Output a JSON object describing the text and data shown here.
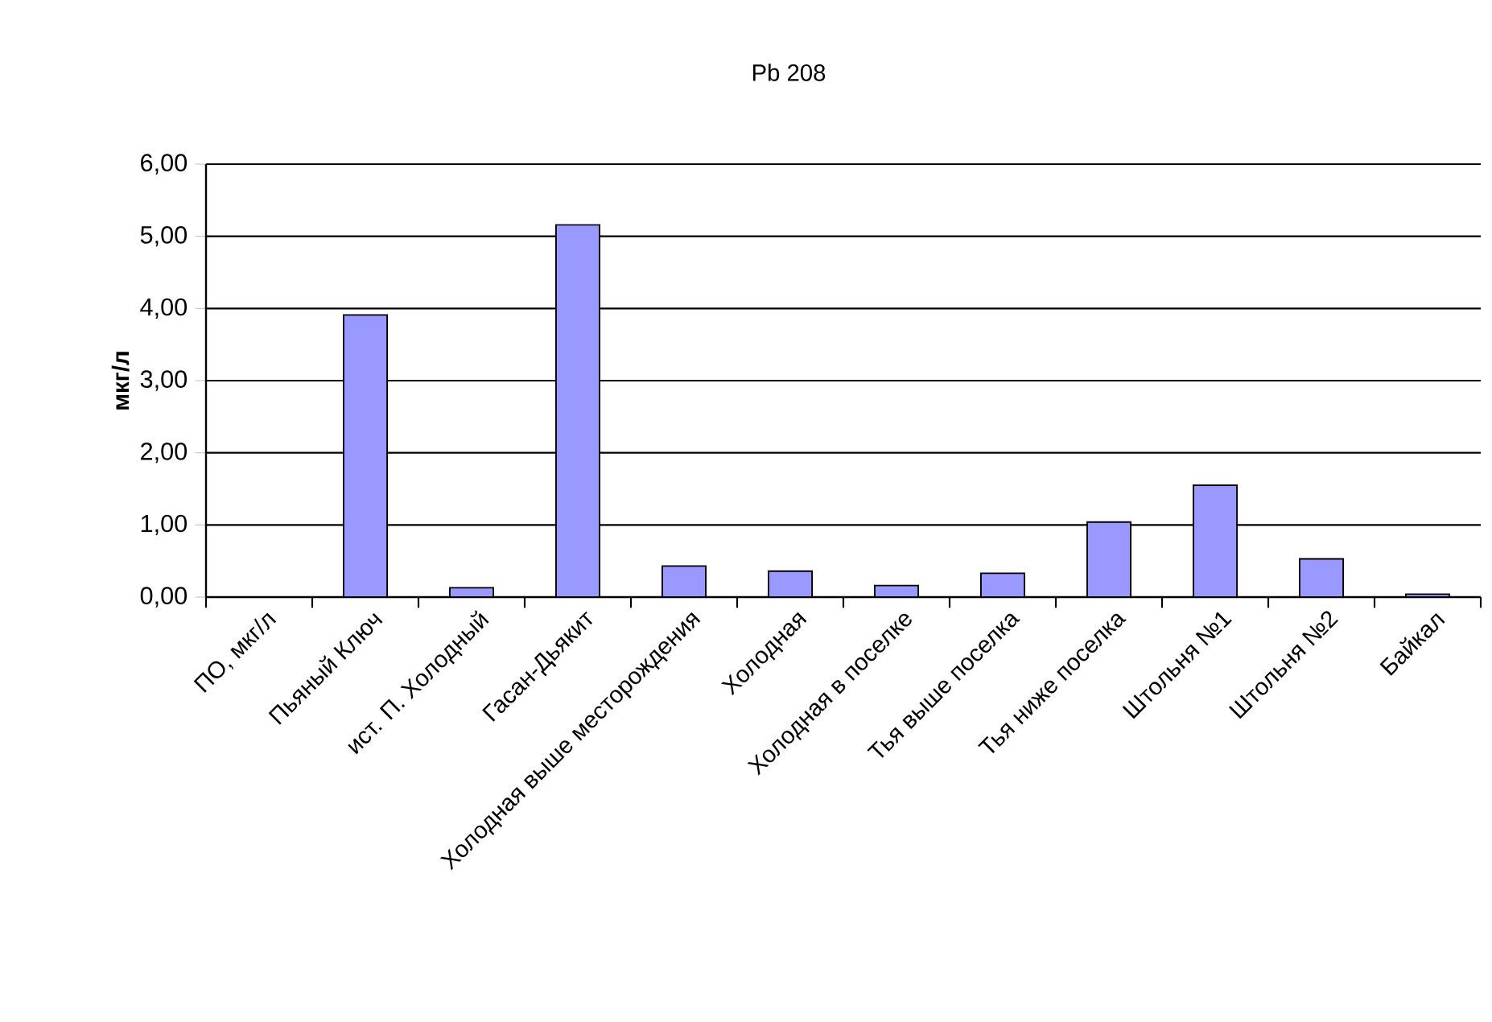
{
  "chart_data": {
    "type": "bar",
    "title": "Pb 208",
    "ylabel": "мкг/л",
    "categories": [
      "ПО, мкг/л",
      "Пьяный Ключ",
      "ист. П. Холодный",
      "Гасан-Дьякит",
      "Холодная выше месторождения",
      "Холодная",
      "Холодная в поселке",
      "Тья выше поселка",
      "Тья ниже поселка",
      "Штольня №1",
      "Штольня №2",
      "Байкал"
    ],
    "values": [
      null,
      3.91,
      0.13,
      5.16,
      0.43,
      0.36,
      0.16,
      0.33,
      1.04,
      1.55,
      0.53,
      0.04
    ],
    "color": "#9999ff",
    "ylim": [
      0,
      6
    ],
    "yticks": [
      {
        "value": 0,
        "label": "0,00"
      },
      {
        "value": 1,
        "label": "1,00"
      },
      {
        "value": 2,
        "label": "2,00"
      },
      {
        "value": 3,
        "label": "3,00"
      },
      {
        "value": 4,
        "label": "4,00"
      },
      {
        "value": 5,
        "label": "5,00"
      },
      {
        "value": 6,
        "label": "6,00"
      }
    ],
    "grid": "y"
  }
}
